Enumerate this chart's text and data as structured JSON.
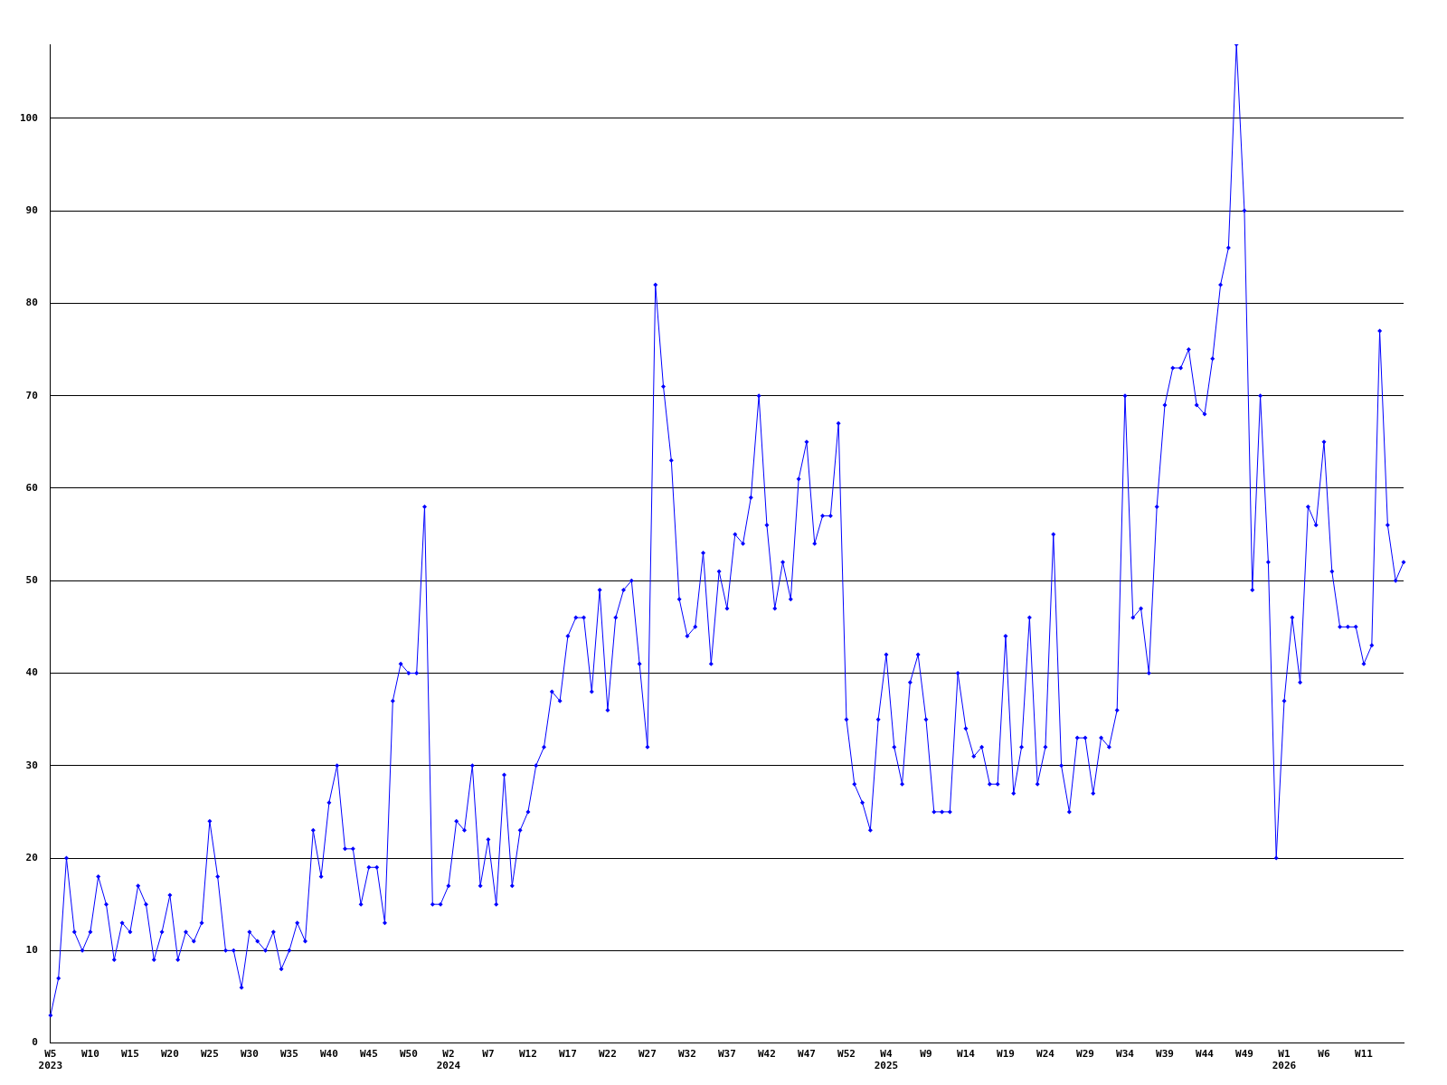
{
  "chart_data": {
    "type": "line",
    "categories": [
      "W5\n2023",
      null,
      null,
      null,
      null,
      "W10",
      null,
      null,
      null,
      null,
      "W15",
      null,
      null,
      null,
      null,
      "W20",
      null,
      null,
      null,
      null,
      "W25",
      null,
      null,
      null,
      null,
      "W30",
      null,
      null,
      null,
      null,
      "W35",
      null,
      null,
      null,
      null,
      "W40",
      null,
      null,
      null,
      null,
      "W45",
      null,
      null,
      null,
      null,
      "W50",
      null,
      null,
      null,
      null,
      "W2\n2024",
      null,
      null,
      null,
      null,
      "W7",
      null,
      null,
      null,
      null,
      "W12",
      null,
      null,
      null,
      null,
      "W17",
      null,
      null,
      null,
      null,
      "W22",
      null,
      null,
      null,
      null,
      "W27",
      null,
      null,
      null,
      null,
      "W32",
      null,
      null,
      null,
      null,
      "W37",
      null,
      null,
      null,
      null,
      "W42",
      null,
      null,
      null,
      null,
      "W47",
      null,
      null,
      null,
      null,
      "W52",
      null,
      null,
      null,
      null,
      "W4\n2025",
      null,
      null,
      null,
      null,
      "W9",
      null,
      null,
      null,
      null,
      "W14",
      null,
      null,
      null,
      null,
      "W19",
      null,
      null,
      null,
      null,
      "W24",
      null,
      null,
      null,
      null,
      "W29",
      null,
      null,
      null,
      null,
      "W34",
      null,
      null,
      null,
      null,
      "W39",
      null,
      null,
      null,
      null,
      "W44",
      null,
      null,
      null,
      null,
      "W49",
      null,
      null,
      null,
      null,
      "W1\n2026",
      null,
      null,
      null,
      null,
      "W6",
      null,
      null,
      null,
      null,
      "W11",
      null,
      null,
      null,
      null,
      null
    ],
    "series": [
      {
        "color": "#0000ff",
        "values": [
          3,
          7,
          20,
          12,
          10,
          12,
          18,
          15,
          9,
          13,
          12,
          17,
          15,
          9,
          12,
          16,
          9,
          12,
          11,
          13,
          24,
          18,
          10,
          10,
          6,
          12,
          11,
          10,
          12,
          8,
          10,
          13,
          11,
          23,
          18,
          26,
          30,
          21,
          21,
          15,
          19,
          19,
          13,
          37,
          41,
          40,
          40,
          58,
          15,
          15,
          17,
          24,
          23,
          30,
          17,
          22,
          15,
          29,
          17,
          23,
          25,
          30,
          32,
          38,
          37,
          44,
          46,
          46,
          38,
          49,
          36,
          46,
          49,
          50,
          41,
          32,
          82,
          71,
          63,
          48,
          44,
          45,
          53,
          41,
          51,
          47,
          55,
          54,
          59,
          70,
          56,
          47,
          52,
          48,
          61,
          65,
          54,
          57,
          57,
          67,
          35,
          28,
          26,
          23,
          35,
          42,
          32,
          28,
          39,
          42,
          35,
          25,
          25,
          25,
          40,
          34,
          31,
          32,
          28,
          28,
          44,
          27,
          32,
          46,
          28,
          32,
          55,
          30,
          25,
          33,
          33,
          27,
          33,
          32,
          36,
          70,
          46,
          47,
          40,
          58,
          69,
          73,
          73,
          75,
          69,
          68,
          74,
          82,
          86,
          108,
          90,
          49,
          70,
          52,
          20,
          37,
          46,
          39,
          58,
          56,
          65,
          51,
          45,
          45,
          45,
          41,
          43,
          77,
          56,
          50,
          52
        ]
      }
    ],
    "ylim": [
      0,
      108
    ],
    "yticks": [
      0,
      10,
      20,
      30,
      40,
      50,
      60,
      70,
      80,
      90,
      100
    ],
    "grid": "y",
    "legend": false,
    "marker": "diamond",
    "line_style": "solid"
  }
}
